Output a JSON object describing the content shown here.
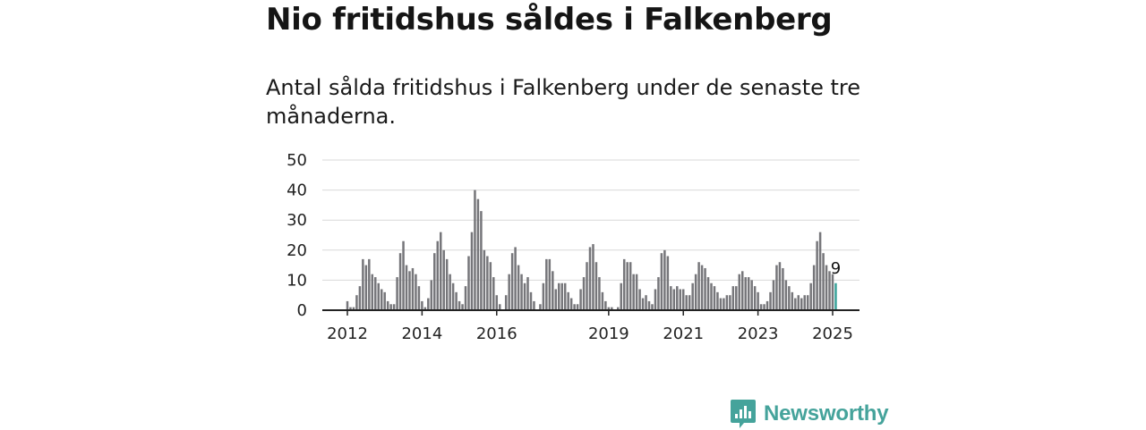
{
  "header": {
    "title": "Nio fritidshus såldes i Falkenberg",
    "subtitle": "Antal sålda fritidshus i Falkenberg under de senaste tre månaderna."
  },
  "brand": {
    "name": "Newsworthy",
    "color": "#45a39b",
    "icon": "bar-chart-speech-bubble-icon"
  },
  "chart_data": {
    "type": "bar",
    "x_start": "2012-01",
    "x_end": "2025-01",
    "x_tick_labels": [
      "2012",
      "2014",
      "2016",
      "2019",
      "2021",
      "2023",
      "2025"
    ],
    "x_tick_dates": [
      "2012-01",
      "2014-01",
      "2016-01",
      "2019-01",
      "2021-01",
      "2023-01",
      "2025-01"
    ],
    "y_ticks": [
      0,
      10,
      20,
      30,
      40,
      50
    ],
    "ylim": [
      0,
      50
    ],
    "grid": true,
    "bar_color": "#76767a",
    "highlight_color": "#3aa39a",
    "highlight_label": "9",
    "values": [
      3,
      1,
      1,
      5,
      8,
      17,
      15,
      17,
      12,
      11,
      9,
      7,
      6,
      3,
      2,
      2,
      11,
      19,
      23,
      15,
      13,
      14,
      12,
      8,
      3,
      1,
      4,
      10,
      19,
      23,
      26,
      20,
      17,
      12,
      9,
      6,
      3,
      2,
      8,
      18,
      26,
      40,
      37,
      33,
      20,
      18,
      16,
      11,
      5,
      2,
      0,
      5,
      12,
      19,
      21,
      15,
      12,
      9,
      11,
      6,
      3,
      0,
      2,
      9,
      17,
      17,
      13,
      7,
      9,
      9,
      9,
      6,
      4,
      2,
      2,
      7,
      11,
      16,
      21,
      22,
      16,
      11,
      6,
      3,
      1,
      1,
      0,
      1,
      9,
      17,
      16,
      16,
      12,
      12,
      7,
      4,
      5,
      3,
      2,
      7,
      11,
      19,
      20,
      18,
      8,
      7,
      8,
      7,
      7,
      5,
      5,
      9,
      12,
      16,
      15,
      14,
      11,
      9,
      8,
      6,
      4,
      4,
      5,
      5,
      8,
      8,
      12,
      13,
      11,
      11,
      10,
      8,
      6,
      2,
      2,
      3,
      6,
      10,
      15,
      16,
      14,
      10,
      8,
      6,
      4,
      5,
      4,
      5,
      5,
      9,
      15,
      23,
      26,
      19,
      15,
      13,
      12,
      9
    ]
  }
}
